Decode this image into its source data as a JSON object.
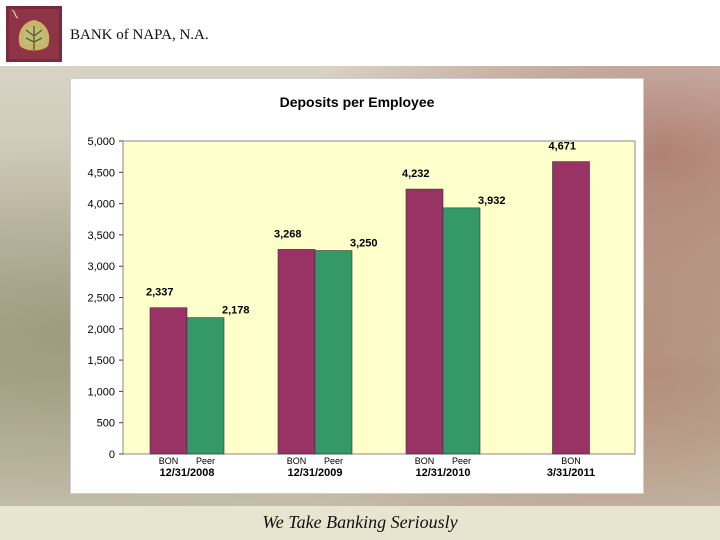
{
  "header": {
    "bank_name": "BANK of NAPA, N.A."
  },
  "footer": {
    "tagline": "We Take Banking Seriously"
  },
  "colors": {
    "bon": "#993366",
    "peer": "#339966",
    "plot_bg": "#ffffcc"
  },
  "chart_data": {
    "type": "bar",
    "title": "Deposits per Employee",
    "xlabel": "",
    "ylabel": "",
    "ylim": [
      0,
      5000
    ],
    "yticks": [
      0,
      500,
      1000,
      1500,
      2000,
      2500,
      3000,
      3500,
      4000,
      4500,
      5000
    ],
    "ytick_labels": [
      "0",
      "500",
      "1,000",
      "1,500",
      "2,000",
      "2,500",
      "3,000",
      "3,500",
      "4,000",
      "4,500",
      "5,000"
    ],
    "categories": [
      "12/31/2008",
      "12/31/2009",
      "12/31/2010",
      "3/31/2011"
    ],
    "series": [
      {
        "name": "BON",
        "values": [
          2337,
          3268,
          4232,
          4671
        ],
        "labels": [
          "2,337",
          "3,268",
          "4,232",
          "4,671"
        ]
      },
      {
        "name": "Peer",
        "values": [
          2178,
          3250,
          3932,
          null
        ],
        "labels": [
          "2,178",
          "3,250",
          "3,932",
          ""
        ]
      }
    ],
    "grid": false,
    "legend": "none"
  }
}
